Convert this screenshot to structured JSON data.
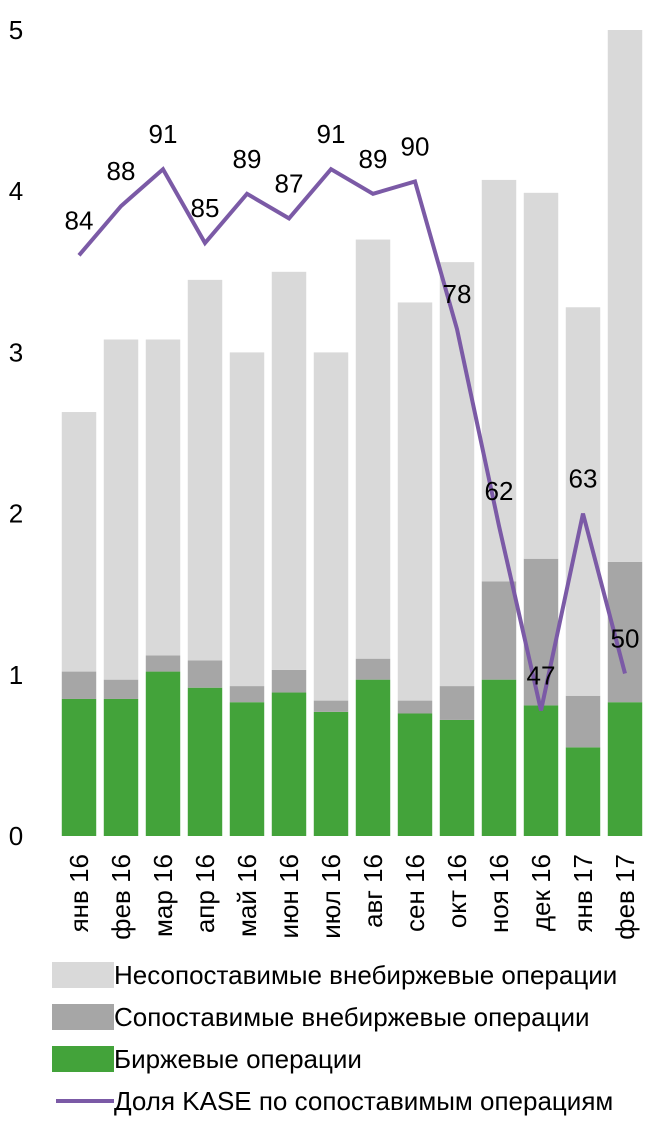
{
  "chart_data": {
    "type": "bar",
    "stacked": true,
    "categories": [
      "янв 16",
      "фев 16",
      "мар 16",
      "апр 16",
      "май 16",
      "июн 16",
      "июл 16",
      "авг 16",
      "сен 16",
      "окт 16",
      "ноя 16",
      "дек 16",
      "янв 17",
      "фев 17"
    ],
    "series": [
      {
        "name": "Биржевые операции",
        "type": "bar",
        "color": "#43a33a",
        "values": [
          0.85,
          0.85,
          1.02,
          0.92,
          0.83,
          0.89,
          0.77,
          0.97,
          0.76,
          0.72,
          0.97,
          0.81,
          0.55,
          0.83
        ]
      },
      {
        "name": "Сопоставимые внебиржевые операции",
        "type": "bar",
        "color": "#a6a6a6",
        "values": [
          0.17,
          0.12,
          0.1,
          0.17,
          0.1,
          0.14,
          0.07,
          0.13,
          0.08,
          0.21,
          0.61,
          0.91,
          0.32,
          0.87
        ]
      },
      {
        "name": "Несопоставимые внебиржевые операции",
        "type": "bar",
        "color": "#d9d9d9",
        "values": [
          1.61,
          2.11,
          1.96,
          2.36,
          2.07,
          2.47,
          2.16,
          2.6,
          2.47,
          2.63,
          2.49,
          2.27,
          2.41,
          3.3
        ]
      },
      {
        "name": "Доля KASE по сопоставимым операциям",
        "type": "line",
        "color": "#7b5aa6",
        "values": [
          84,
          88,
          91,
          85,
          89,
          87,
          91,
          89,
          90,
          78,
          62,
          47,
          63,
          50
        ]
      }
    ],
    "yaxis": {
      "ticks": [
        "0",
        "1",
        "2",
        "3",
        "4",
        "5"
      ],
      "ylim": [
        0,
        5
      ]
    },
    "line_scale_note": "",
    "line_ylim": [
      35,
      95
    ],
    "title": "",
    "xlabel": "",
    "ylabel": "",
    "legend": {
      "placement": "bottom",
      "items": [
        {
          "label": "Несопоставимые внебиржевые операции",
          "kind": "box",
          "color": "#d9d9d9"
        },
        {
          "label": "Сопоставимые внебиржевые операции",
          "kind": "box",
          "color": "#a6a6a6"
        },
        {
          "label": "Биржевые операции",
          "kind": "box",
          "color": "#43a33a"
        },
        {
          "label": "Доля KASE по сопоставимым операциям",
          "kind": "line",
          "color": "#7b5aa6"
        }
      ]
    },
    "grid": false
  }
}
